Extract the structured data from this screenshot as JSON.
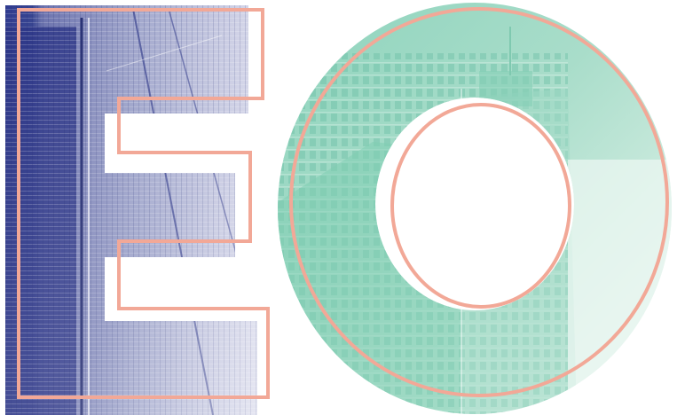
{
  "artwork": {
    "letters": [
      "E",
      "O"
    ],
    "colors": {
      "background": "#ffffff",
      "e_tint_dark": "#2e3a8f",
      "e_tint_light": "#d6d7ea",
      "o_tint_dark": "#6fc6ad",
      "o_tint_light": "#eef8f4",
      "outline": "#f2a897"
    }
  }
}
